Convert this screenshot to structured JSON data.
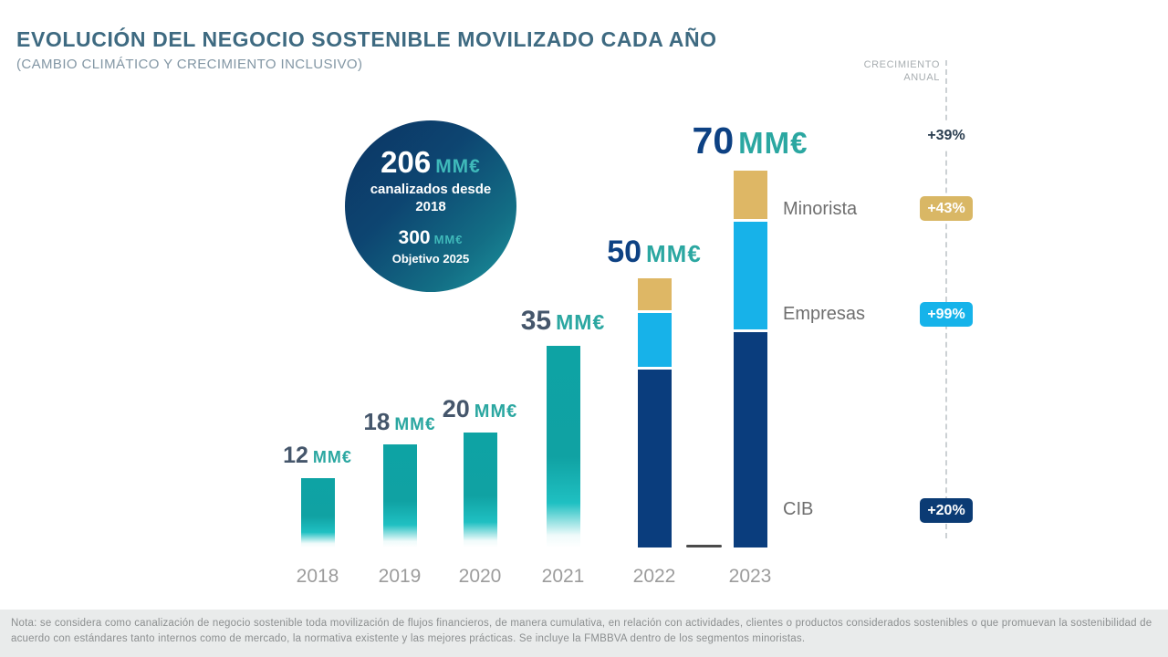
{
  "header": {
    "title": "EVOLUCIÓN DEL NEGOCIO SOSTENIBLE MOVILIZADO CADA AÑO",
    "subtitle": "(CAMBIO CLIMÁTICO Y CRECIMIENTO INCLUSIVO)"
  },
  "growth_column": {
    "header_line1": "CRECIMIENTO",
    "header_line2": "ANUAL",
    "badges": [
      {
        "id": "total",
        "label": "+39%",
        "bg": "#ffffff",
        "text_color": "#2b3e50"
      },
      {
        "id": "minorista",
        "label": "+43%",
        "bg": "#d9b765",
        "text_color": "#ffffff"
      },
      {
        "id": "empresas",
        "label": "+99%",
        "bg": "#16b3ea",
        "text_color": "#ffffff"
      },
      {
        "id": "cib",
        "label": "+20%",
        "bg": "#0b3b74",
        "text_color": "#ffffff"
      }
    ]
  },
  "highlight_circle": {
    "value": "206",
    "unit": "MM€",
    "desc_line1": "canalizados desde",
    "desc_line2": "2018",
    "target_value": "300",
    "target_unit": "MM€",
    "target_label": "Objetivo 2025"
  },
  "segment_labels": [
    {
      "id": "minorista",
      "label": "Minorista"
    },
    {
      "id": "empresas",
      "label": "Empresas"
    },
    {
      "id": "cib",
      "label": "CIB"
    }
  ],
  "footer_note": "Nota: se considera como canalización de negocio sostenible toda movilización de flujos financieros, de manera cumulativa, en relación con actividades, clientes o productos considerados sostenibles o que promuevan la sostenibilidad de acuerdo con estándares tanto internos como de mercado, la normativa existente y las mejores prácticas. Se incluye la FMBBVA dentro de los segmentos minoristas.",
  "chart_data": {
    "type": "bar",
    "stacked": true,
    "title": "EVOLUCIÓN DEL NEGOCIO SOSTENIBLE MOVILIZADO CADA AÑO",
    "subtitle": "(CAMBIO CLIMÁTICO Y CRECIMIENTO INCLUSIVO)",
    "unit": "MM€",
    "categories": [
      "2018",
      "2019",
      "2020",
      "2021",
      "2022",
      "2023"
    ],
    "totals": [
      12,
      18,
      20,
      35,
      50,
      70
    ],
    "single_series_color": "#10a2a3",
    "stack_order": [
      "Minorista",
      "Empresas",
      "CIB"
    ],
    "segment_colors": {
      "Minorista": "#deb765",
      "Empresas": "#17b2e9",
      "CIB": "#0a3d7d"
    },
    "segments_by_year": {
      "2022": {
        "CIB": 33,
        "Empresas": 10,
        "Minorista": 6
      },
      "2023": {
        "CIB": 40,
        "Empresas": 20,
        "Minorista": 9
      }
    },
    "annual_growth": {
      "total": "+39%",
      "Minorista": "+43%",
      "Empresas": "+99%",
      "CIB": "+20%"
    },
    "cumulative_since_2018": 206,
    "target_2025": 300,
    "ylim": [
      0,
      70
    ],
    "grid": false,
    "legend_position": "right",
    "x_axis_labels": [
      "2018",
      "2019",
      "2020",
      "2021",
      "2022",
      "2023"
    ]
  }
}
